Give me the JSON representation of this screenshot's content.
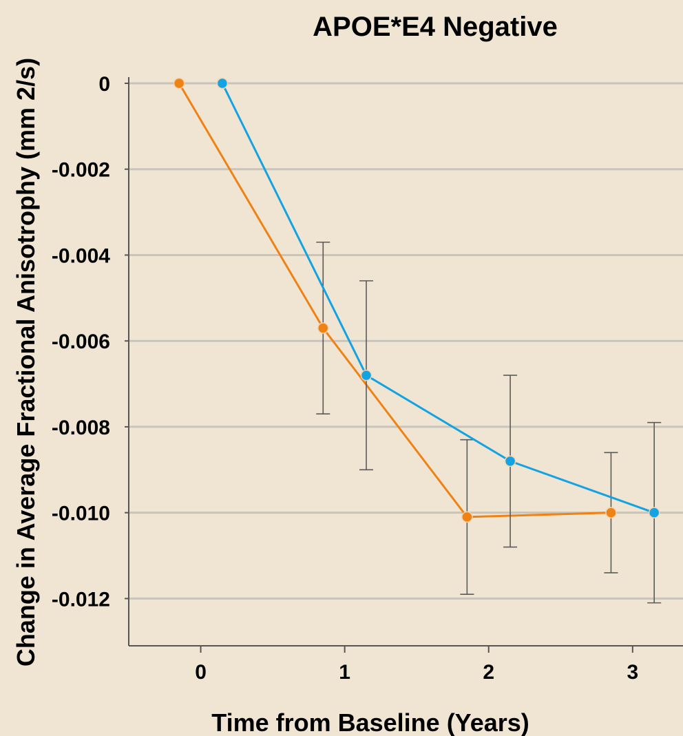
{
  "chart_data": {
    "type": "line",
    "title": "APOE*E4 Negative",
    "xlabel": "Time from Baseline (Years)",
    "ylabel": "Change in Average Fractional Anisotrophy (mm 2/s)",
    "x_ticks": [
      "0",
      "1",
      "2",
      "3"
    ],
    "y_ticks": [
      "0",
      "-0.002",
      "-0.004",
      "-0.006",
      "-0.008",
      "-0.010",
      "-0.012"
    ],
    "xlim": [
      -0.5,
      3.35
    ],
    "ylim": [
      -0.0131,
      0
    ],
    "grid": true,
    "series": [
      {
        "color": "#ef8214",
        "points": [
          {
            "x": -0.15,
            "y": 0,
            "err": null
          },
          {
            "x": 0.85,
            "y": -0.0057,
            "err": 0.002
          },
          {
            "x": 1.85,
            "y": -0.0101,
            "err": 0.0018
          },
          {
            "x": 2.85,
            "y": -0.01,
            "err": 0.0014
          }
        ]
      },
      {
        "color": "#13a3e2",
        "points": [
          {
            "x": 0.15,
            "y": 0,
            "err": null
          },
          {
            "x": 1.15,
            "y": -0.0068,
            "err": 0.0022
          },
          {
            "x": 2.15,
            "y": -0.0088,
            "err": 0.002
          },
          {
            "x": 3.15,
            "y": -0.01,
            "err": 0.0021
          }
        ]
      }
    ]
  }
}
